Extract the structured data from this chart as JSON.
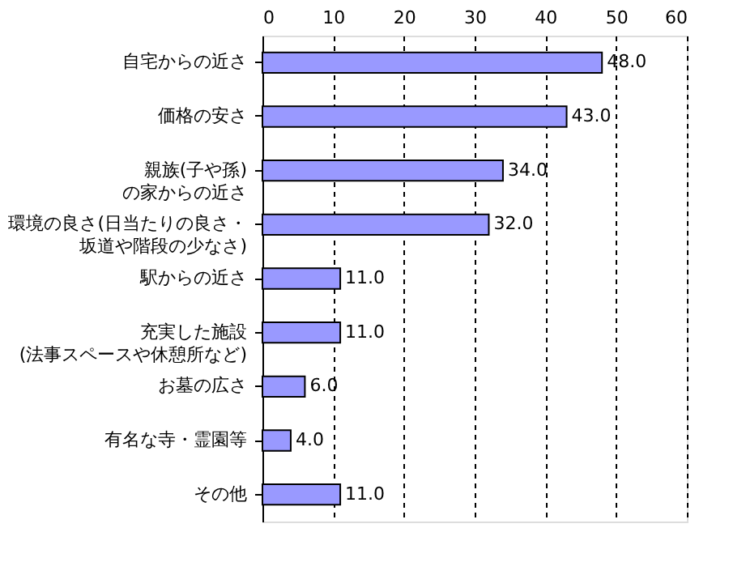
{
  "chart_data": {
    "type": "bar",
    "orientation": "horizontal",
    "categories": [
      "自宅からの近さ",
      "価格の安さ",
      "親族(子や孫)の家からの近さ",
      "環境の良さ(日当たりの良さ・坂道や階段の少なさ)",
      "駅からの近さ",
      "充実した施設(法事スペースや休憩所など)",
      "お墓の広さ",
      "有名な寺・霊園等",
      "その他"
    ],
    "values": [
      48,
      43,
      34,
      32,
      11,
      11,
      6,
      4,
      11
    ],
    "value_labels": [
      "48.0",
      "43.0",
      "34.0",
      "32.0",
      "11.0",
      "11.0",
      "6.0",
      "4.0",
      "11.0"
    ],
    "color": "#9999ff",
    "xlim": [
      0,
      60
    ],
    "xticks": [
      0,
      10,
      20,
      30,
      40,
      50,
      60
    ],
    "grid": "x"
  }
}
